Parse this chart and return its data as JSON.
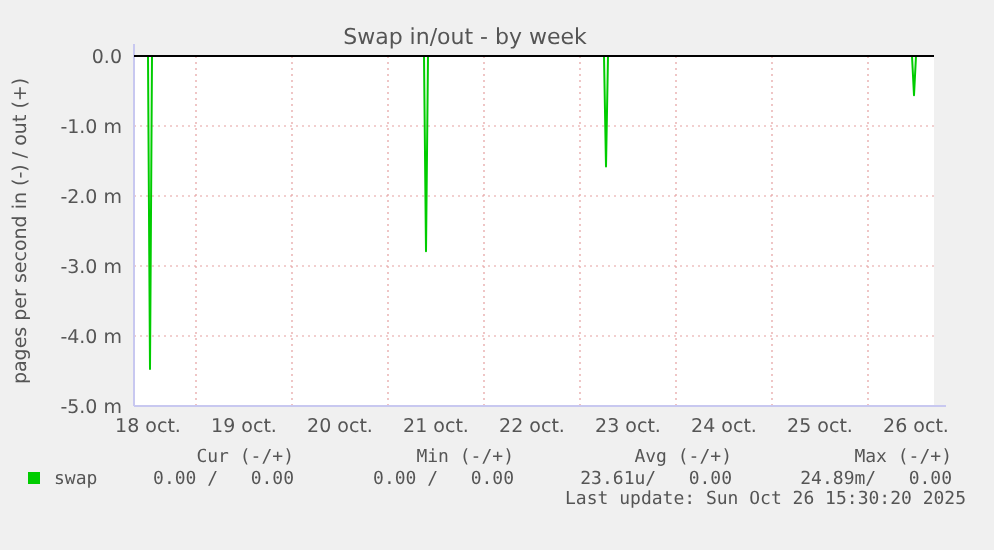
{
  "chart_data": {
    "type": "line",
    "title": "Swap in/out - by week",
    "ylabel": "pages per second in (-) / out (+)",
    "x": [
      "2025-10-18T08:30",
      "2025-10-18T12:00",
      "2025-10-18T12:30",
      "2025-10-18T13:00",
      "2025-10-21T09:00",
      "2025-10-21T09:30",
      "2025-10-21T10:00",
      "2025-10-23T06:00",
      "2025-10-23T06:30",
      "2025-10-23T07:00",
      "2025-10-26T11:00",
      "2025-10-26T11:30",
      "2025-10-26T12:00",
      "2025-10-26T16:00"
    ],
    "series": [
      {
        "name": "swap",
        "color": "#00cc00",
        "values": [
          0,
          0,
          -4.47,
          0,
          0,
          -2.79,
          0,
          0,
          -1.58,
          0,
          0,
          -0.56,
          0,
          0
        ]
      }
    ],
    "xlim": [
      "2025-10-18T08:30",
      "2025-10-26T16:30"
    ],
    "xticks": [
      {
        "value": "2025-10-18T12:00",
        "label": "18 oct."
      },
      {
        "value": "2025-10-19T00:00",
        "label": null
      },
      {
        "value": "2025-10-19T12:00",
        "label": "19 oct."
      },
      {
        "value": "2025-10-20T00:00",
        "label": null
      },
      {
        "value": "2025-10-20T12:00",
        "label": "20 oct."
      },
      {
        "value": "2025-10-21T00:00",
        "label": null
      },
      {
        "value": "2025-10-21T12:00",
        "label": "21 oct."
      },
      {
        "value": "2025-10-22T00:00",
        "label": null
      },
      {
        "value": "2025-10-22T12:00",
        "label": "22 oct."
      },
      {
        "value": "2025-10-23T00:00",
        "label": null
      },
      {
        "value": "2025-10-23T12:00",
        "label": "23 oct."
      },
      {
        "value": "2025-10-24T00:00",
        "label": null
      },
      {
        "value": "2025-10-24T12:00",
        "label": "24 oct."
      },
      {
        "value": "2025-10-25T00:00",
        "label": null
      },
      {
        "value": "2025-10-25T12:00",
        "label": "25 oct."
      },
      {
        "value": "2025-10-26T00:00",
        "label": null
      },
      {
        "value": "2025-10-26T12:00",
        "label": "26 oct."
      }
    ],
    "ylim": [
      -5,
      0
    ],
    "yticks": [
      {
        "value": -5,
        "label": "-5.0 m"
      },
      {
        "value": -4,
        "label": "-4.0 m"
      },
      {
        "value": -3,
        "label": "-3.0 m"
      },
      {
        "value": -2,
        "label": "-2.0 m"
      },
      {
        "value": -1,
        "label": "-1.0 m"
      },
      {
        "value": 0,
        "label": "0.0"
      }
    ],
    "grid": true,
    "legend": "bottom left",
    "marker": "none",
    "line_style": "solid",
    "annotations": [
      "Cur (-/+)",
      "Min (-/+)",
      "Avg (-/+)",
      "Max (-/+)",
      "0.00 /   0.00",
      "0.00 /   0.00",
      "23.61u/   0.00",
      "24.89m/   0.00",
      "Last update: Sun Oct 26 15:30:20 2025"
    ]
  }
}
